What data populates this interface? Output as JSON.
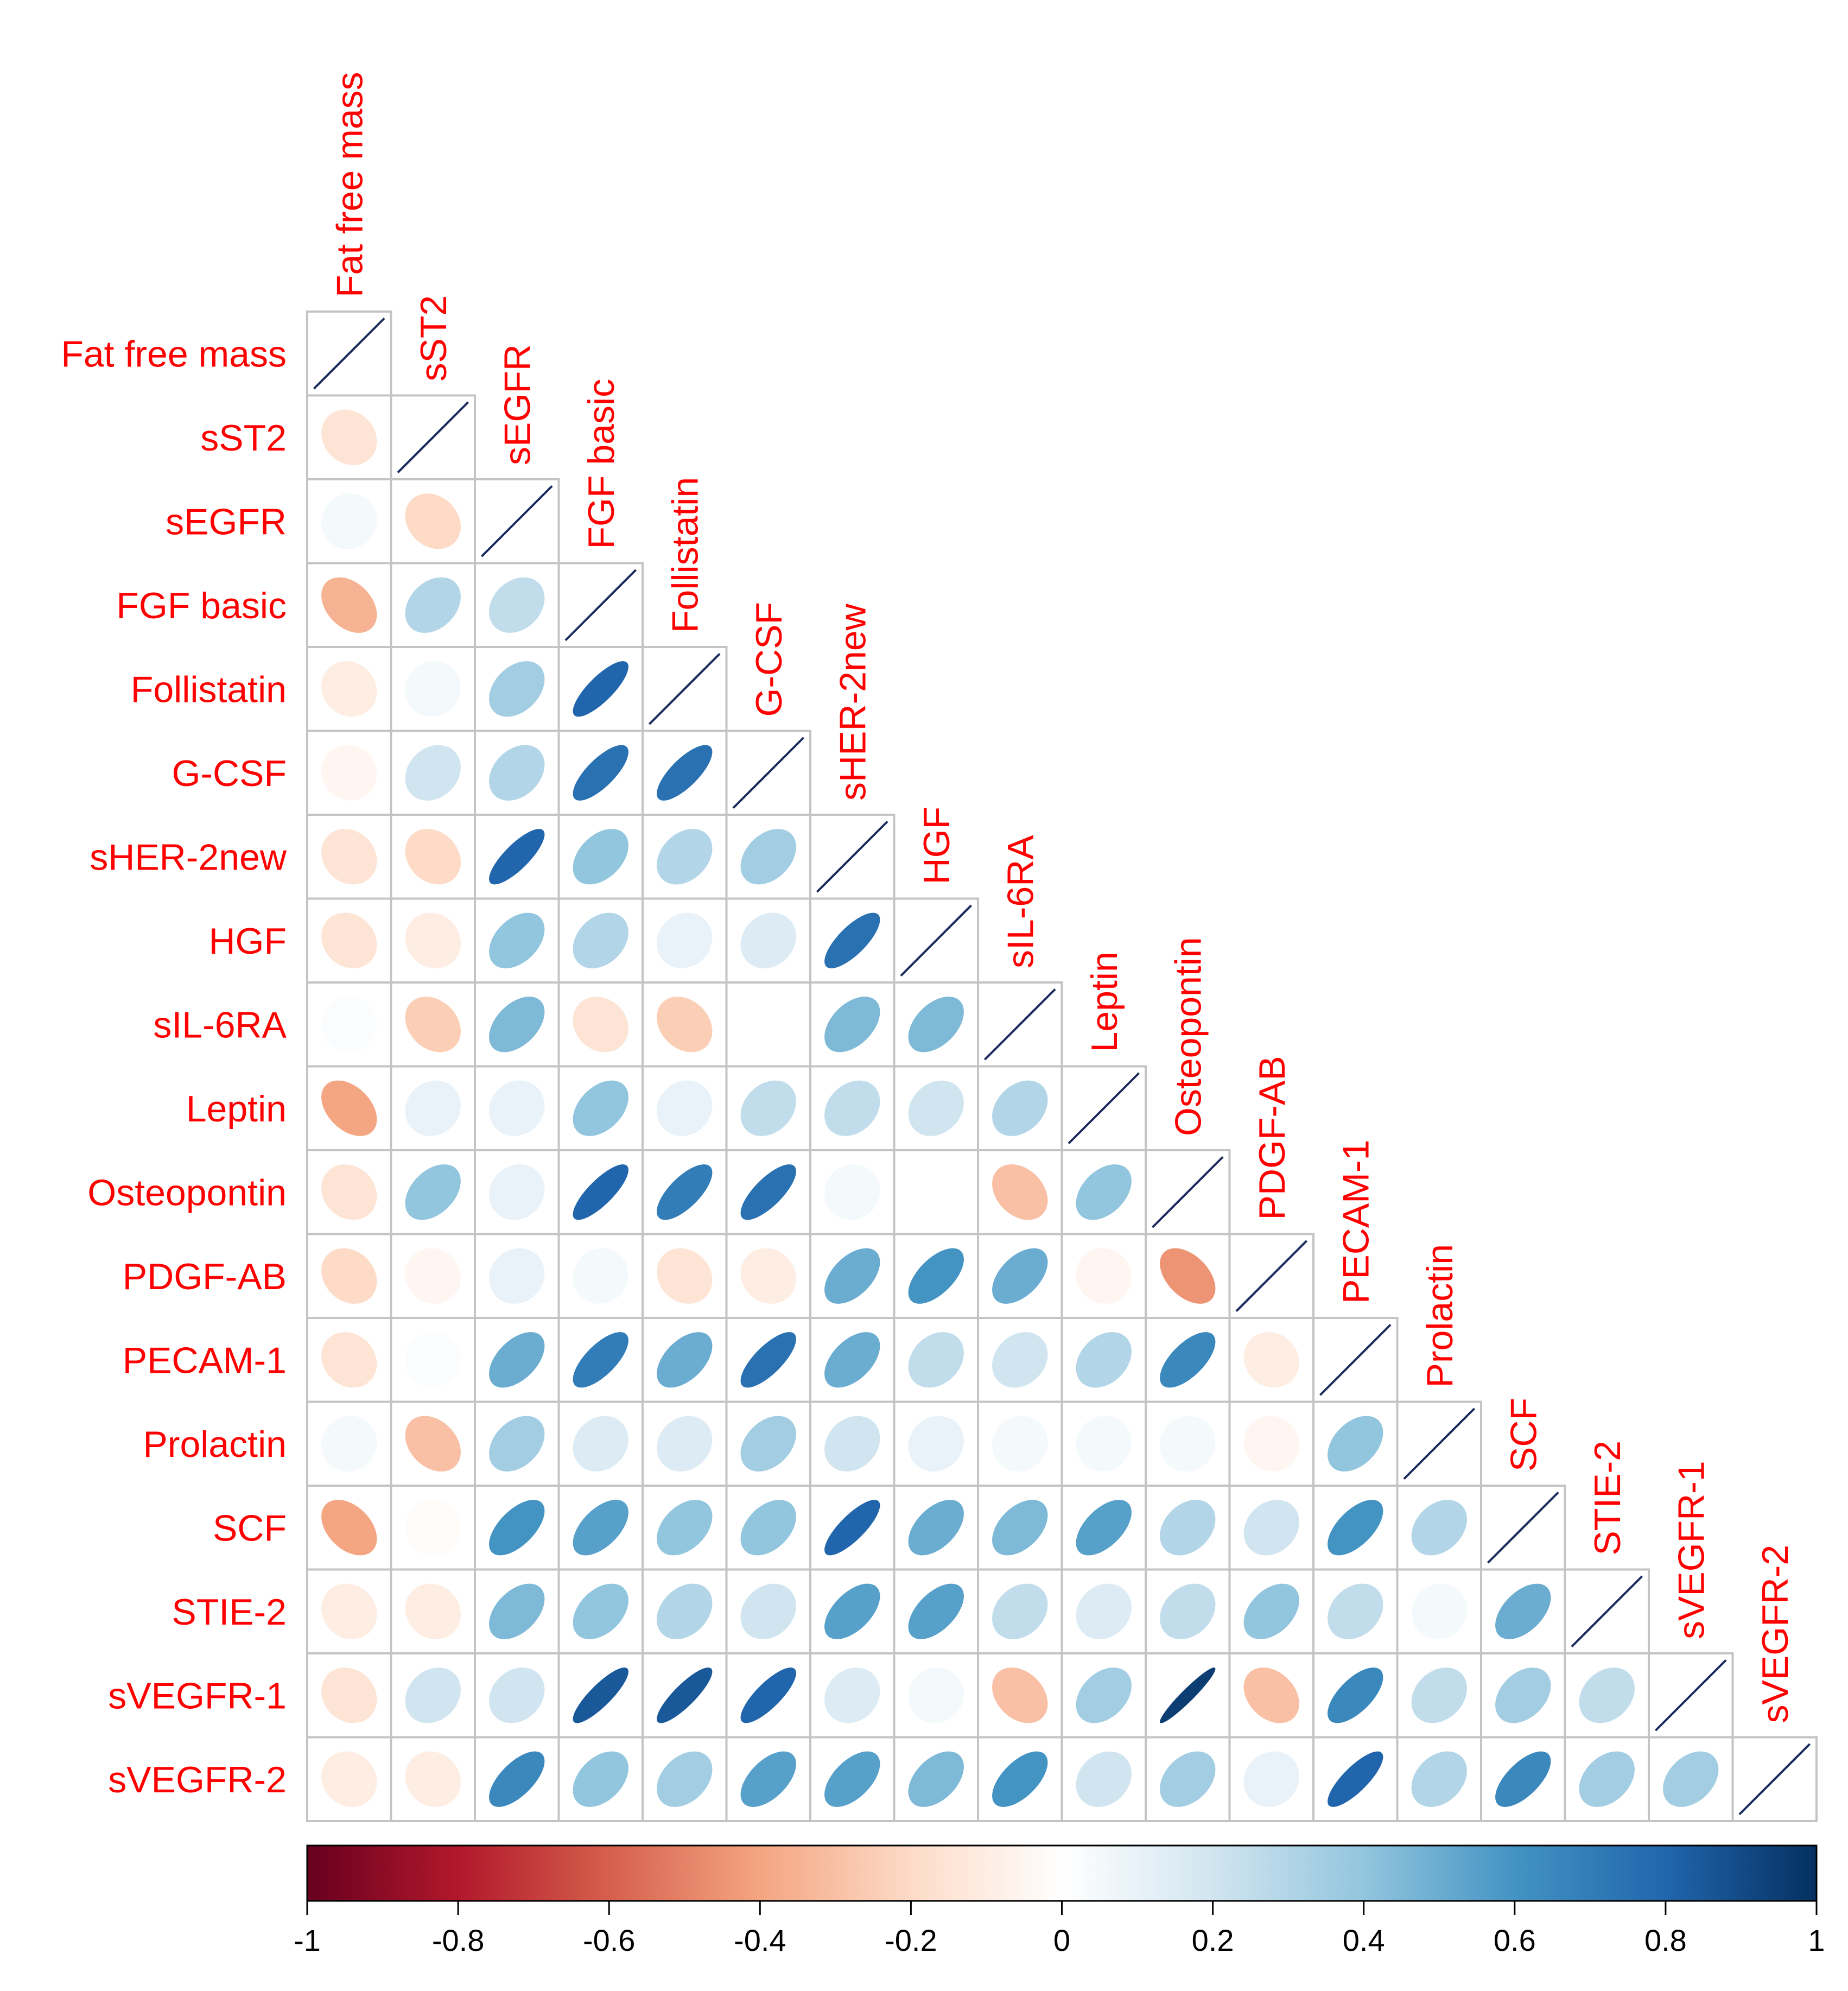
{
  "chart_data": {
    "type": "heatmap",
    "subtype": "correlation-ellipse-lower-triangle",
    "variables": [
      "Fat free mass",
      "sST2",
      "sEGFR",
      "FGF basic",
      "Follistatin",
      "G-CSF",
      "sHER-2new",
      "HGF",
      "sIL-6RA",
      "Leptin",
      "Osteopontin",
      "PDGF-AB",
      "PECAM-1",
      "Prolactin",
      "SCF",
      "STIE-2",
      "sVEGFR-1",
      "sVEGFR-2"
    ],
    "lower_triangle": [
      [],
      [
        -0.15
      ],
      [
        0.05,
        -0.2
      ],
      [
        -0.35,
        0.3,
        0.25
      ],
      [
        -0.1,
        0.05,
        0.35,
        0.8
      ],
      [
        -0.05,
        0.2,
        0.3,
        0.75,
        0.75
      ],
      [
        -0.15,
        -0.2,
        0.8,
        0.4,
        0.3,
        0.35
      ],
      [
        -0.15,
        -0.1,
        0.4,
        0.3,
        0.1,
        0.15,
        0.75
      ],
      [
        0.02,
        -0.25,
        0.45,
        -0.15,
        -0.25,
        0.0,
        0.45,
        0.45
      ],
      [
        -0.4,
        0.1,
        0.1,
        0.4,
        0.1,
        0.25,
        0.25,
        0.2,
        0.3
      ],
      [
        -0.15,
        0.4,
        0.1,
        0.8,
        0.7,
        0.75,
        0.05,
        0.0,
        -0.3,
        0.4
      ],
      [
        -0.2,
        -0.05,
        0.1,
        0.05,
        -0.15,
        -0.1,
        0.5,
        0.6,
        0.5,
        -0.05,
        -0.45
      ],
      [
        -0.15,
        0.02,
        0.5,
        0.7,
        0.5,
        0.75,
        0.5,
        0.25,
        0.2,
        0.3,
        0.65,
        -0.1
      ],
      [
        0.05,
        -0.3,
        0.35,
        0.15,
        0.15,
        0.35,
        0.2,
        0.1,
        0.05,
        0.05,
        0.05,
        -0.05,
        0.4
      ],
      [
        -0.4,
        -0.02,
        0.6,
        0.55,
        0.4,
        0.4,
        0.8,
        0.5,
        0.45,
        0.55,
        0.3,
        0.2,
        0.6,
        0.3
      ],
      [
        -0.1,
        -0.1,
        0.45,
        0.4,
        0.3,
        0.2,
        0.55,
        0.55,
        0.25,
        0.15,
        0.25,
        0.4,
        0.25,
        0.05,
        0.5
      ],
      [
        -0.15,
        0.2,
        0.2,
        0.85,
        0.85,
        0.8,
        0.15,
        0.05,
        -0.3,
        0.35,
        0.95,
        -0.3,
        0.65,
        0.25,
        0.35,
        0.25
      ],
      [
        -0.1,
        -0.1,
        0.65,
        0.4,
        0.35,
        0.55,
        0.55,
        0.45,
        0.6,
        0.2,
        0.35,
        0.1,
        0.8,
        0.3,
        0.65,
        0.35,
        0.35
      ]
    ],
    "diagonal_value": 1,
    "colorbar": {
      "range": [
        -1,
        1
      ],
      "tick_labels": [
        "-1",
        "-0.8",
        "-0.6",
        "-0.4",
        "-0.2",
        "0",
        "0.2",
        "0.4",
        "0.6",
        "0.8",
        "1"
      ],
      "colors": [
        "#67001f",
        "#b2182b",
        "#d6604d",
        "#f4a582",
        "#fddbc7",
        "#ffffff",
        "#d1e5f0",
        "#92c5de",
        "#4393c3",
        "#2166ac",
        "#053061"
      ]
    },
    "label_color": "#ff0000",
    "title": "",
    "xlabel": "",
    "ylabel": ""
  }
}
